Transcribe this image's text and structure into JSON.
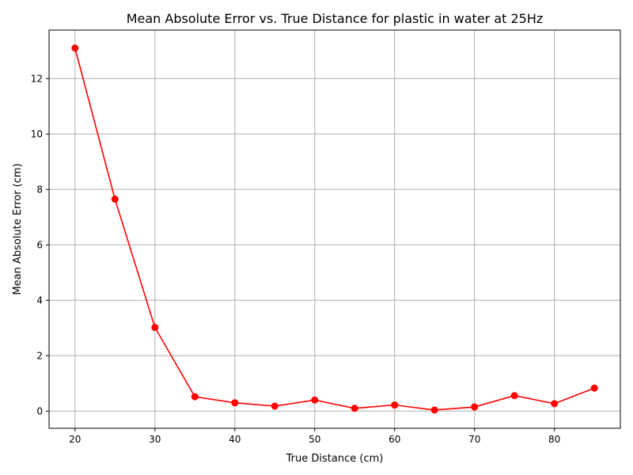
{
  "chart_data": {
    "type": "line",
    "title": "Mean Absolute Error vs. True Distance for plastic in water at 25Hz",
    "xlabel": "True Distance (cm)",
    "ylabel": "Mean Absolute Error (cm)",
    "xlim": [
      16.75,
      88.25
    ],
    "ylim": [
      -0.62,
      13.75
    ],
    "xticks": [
      20,
      30,
      40,
      50,
      60,
      70,
      80
    ],
    "yticks": [
      0,
      2,
      4,
      6,
      8,
      10,
      12
    ],
    "grid": true,
    "series": [
      {
        "color": "#ff0000",
        "marker": "circle",
        "x": [
          20,
          25,
          30,
          35,
          40,
          45,
          50,
          55,
          60,
          65,
          70,
          75,
          80,
          85
        ],
        "y": [
          13.1,
          7.65,
          3.02,
          0.52,
          0.3,
          0.18,
          0.4,
          0.1,
          0.22,
          0.04,
          0.15,
          0.56,
          0.27,
          0.83
        ]
      }
    ]
  }
}
